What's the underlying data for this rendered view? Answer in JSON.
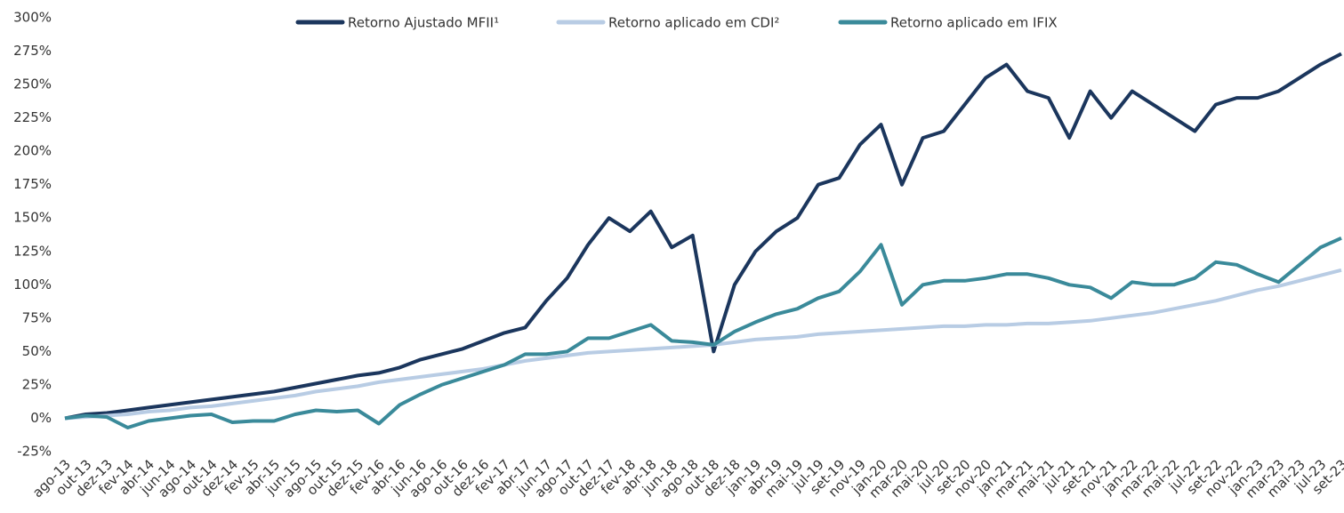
{
  "chart_data": {
    "type": "line",
    "categories": [
      "ago-13",
      "out-13",
      "dez-13",
      "fev-14",
      "abr-14",
      "jun-14",
      "ago-14",
      "out-14",
      "dez-14",
      "fev-15",
      "abr-15",
      "jun-15",
      "ago-15",
      "out-15",
      "dez-15",
      "fev-16",
      "abr-16",
      "jun-16",
      "ago-16",
      "out-16",
      "dez-16",
      "fev-17",
      "abr-17",
      "jun-17",
      "ago-17",
      "out-17",
      "dez-17",
      "fev-18",
      "abr-18",
      "jun-18",
      "ago-18",
      "out-18",
      "dez-18",
      "jan-19",
      "abr-19",
      "mai-19",
      "jul-19",
      "set-19",
      "nov-19",
      "jan-20",
      "mar-20",
      "mai-20",
      "jul-20",
      "set-20",
      "nov-20",
      "jan-21",
      "mar-21",
      "mai-21",
      "jul-21",
      "set-21",
      "nov-21",
      "jan-22",
      "mar-22",
      "mai-22",
      "jul-22",
      "set-22",
      "nov-22",
      "jan-23",
      "mar-23",
      "mai-23",
      "jul-23",
      "set-23"
    ],
    "series": [
      {
        "name": "Retorno Ajustado MFII¹",
        "color": "#1b365d",
        "values": [
          0,
          3,
          4,
          6,
          8,
          10,
          12,
          14,
          16,
          18,
          20,
          23,
          26,
          29,
          32,
          34,
          38,
          44,
          48,
          52,
          58,
          64,
          68,
          88,
          105,
          130,
          150,
          140,
          155,
          128,
          137,
          50,
          100,
          125,
          140,
          150,
          175,
          180,
          205,
          220,
          175,
          210,
          215,
          235,
          255,
          265,
          245,
          240,
          210,
          245,
          225,
          245,
          235,
          225,
          215,
          235,
          240,
          240,
          245,
          255,
          265,
          273
        ]
      },
      {
        "name": "Retorno aplicado em CDI²",
        "color": "#b8cce4",
        "values": [
          0,
          1,
          2,
          3,
          5,
          6,
          8,
          9,
          11,
          13,
          15,
          17,
          20,
          22,
          24,
          27,
          29,
          31,
          33,
          35,
          37,
          40,
          43,
          45,
          47,
          49,
          50,
          51,
          52,
          53,
          54,
          55,
          57,
          59,
          60,
          61,
          63,
          64,
          65,
          66,
          67,
          68,
          69,
          69,
          70,
          70,
          71,
          71,
          72,
          73,
          75,
          77,
          79,
          82,
          85,
          88,
          92,
          96,
          99,
          103,
          107,
          111
        ]
      },
      {
        "name": "Retorno aplicado em IFIX",
        "color": "#3a8a9a",
        "values": [
          0,
          2,
          1,
          -7,
          -2,
          0,
          2,
          3,
          -3,
          -2,
          -2,
          3,
          6,
          5,
          6,
          -4,
          10,
          18,
          25,
          30,
          35,
          40,
          48,
          48,
          50,
          60,
          60,
          65,
          70,
          58,
          57,
          55,
          65,
          72,
          78,
          82,
          90,
          95,
          110,
          130,
          85,
          100,
          103,
          103,
          105,
          108,
          108,
          105,
          100,
          98,
          90,
          102,
          100,
          100,
          105,
          117,
          115,
          108,
          102,
          115,
          128,
          135
        ]
      }
    ],
    "ylim": [
      -25,
      300
    ],
    "yticks": [
      {
        "value": -25,
        "label": "-25%"
      },
      {
        "value": 0,
        "label": "0%"
      },
      {
        "value": 25,
        "label": "25%"
      },
      {
        "value": 50,
        "label": "50%"
      },
      {
        "value": 75,
        "label": "75%"
      },
      {
        "value": 100,
        "label": "100%"
      },
      {
        "value": 125,
        "label": "125%"
      },
      {
        "value": 150,
        "label": "150%"
      },
      {
        "value": 175,
        "label": "175%"
      },
      {
        "value": 200,
        "label": "200%"
      },
      {
        "value": 225,
        "label": "225%"
      },
      {
        "value": 250,
        "label": "250%"
      },
      {
        "value": 275,
        "label": "275%"
      },
      {
        "value": 300,
        "label": "300%"
      }
    ],
    "legend": "top"
  }
}
